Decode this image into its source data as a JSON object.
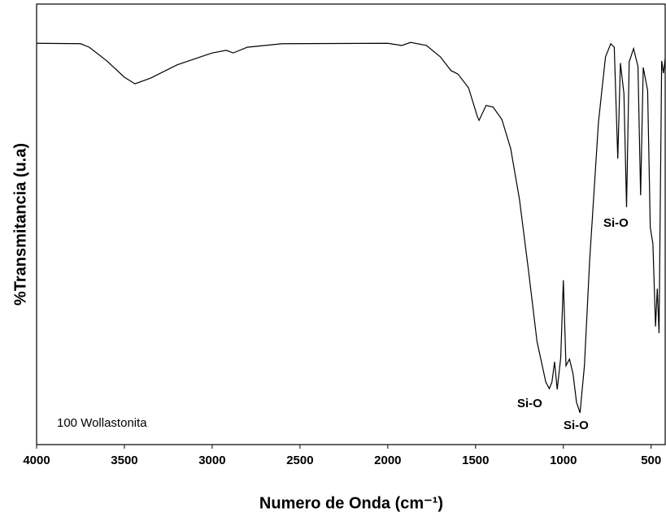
{
  "chart_data": {
    "type": "line",
    "x_label": "Numero de Onda (cm⁻¹)",
    "y_label": "%Transmitancia (u.a)",
    "annotations": [
      "Si-O",
      "Si-O",
      "Si-O",
      "100 Wollastonita"
    ],
    "xlim": [
      4000,
      420
    ],
    "ylim": [
      0,
      100
    ],
    "xticks": [
      4000,
      3500,
      3000,
      2500,
      2000,
      1500,
      1000,
      500
    ],
    "x": [
      4000,
      3750,
      3700,
      3600,
      3500,
      3440,
      3350,
      3200,
      3000,
      2920,
      2880,
      2800,
      2600,
      2000,
      1920,
      1870,
      1780,
      1700,
      1640,
      1600,
      1540,
      1490,
      1480,
      1440,
      1400,
      1350,
      1300,
      1250,
      1200,
      1150,
      1100,
      1080,
      1065,
      1050,
      1035,
      1015,
      1000,
      985,
      965,
      945,
      925,
      905,
      880,
      850,
      800,
      760,
      730,
      710,
      690,
      675,
      655,
      640,
      625,
      600,
      575,
      560,
      545,
      520,
      505,
      490,
      475,
      465,
      455,
      440,
      430,
      420
    ],
    "series": [
      {
        "color": "#000000",
        "values": [
          91.1,
          91,
          90.2,
          87.1,
          83.4,
          81.9,
          83.2,
          86.2,
          88.9,
          89.5,
          88.9,
          90.2,
          91,
          91.1,
          90.6,
          91.3,
          90.6,
          88,
          84.9,
          84.1,
          81,
          74.5,
          73.6,
          77,
          76.6,
          73.8,
          67.2,
          55.7,
          40,
          23.4,
          14.2,
          12.7,
          14.2,
          18.8,
          12.5,
          19.7,
          37.3,
          17.9,
          19.4,
          16.1,
          9.6,
          7.2,
          17.9,
          41.9,
          73.2,
          88,
          91,
          90.2,
          64.9,
          86.6,
          79.7,
          53.9,
          86.9,
          89.9,
          85.8,
          56.6,
          85.6,
          80.4,
          49.3,
          45.6,
          26.8,
          35.4,
          25.3,
          87.1,
          84.3,
          87.6
        ]
      }
    ]
  }
}
